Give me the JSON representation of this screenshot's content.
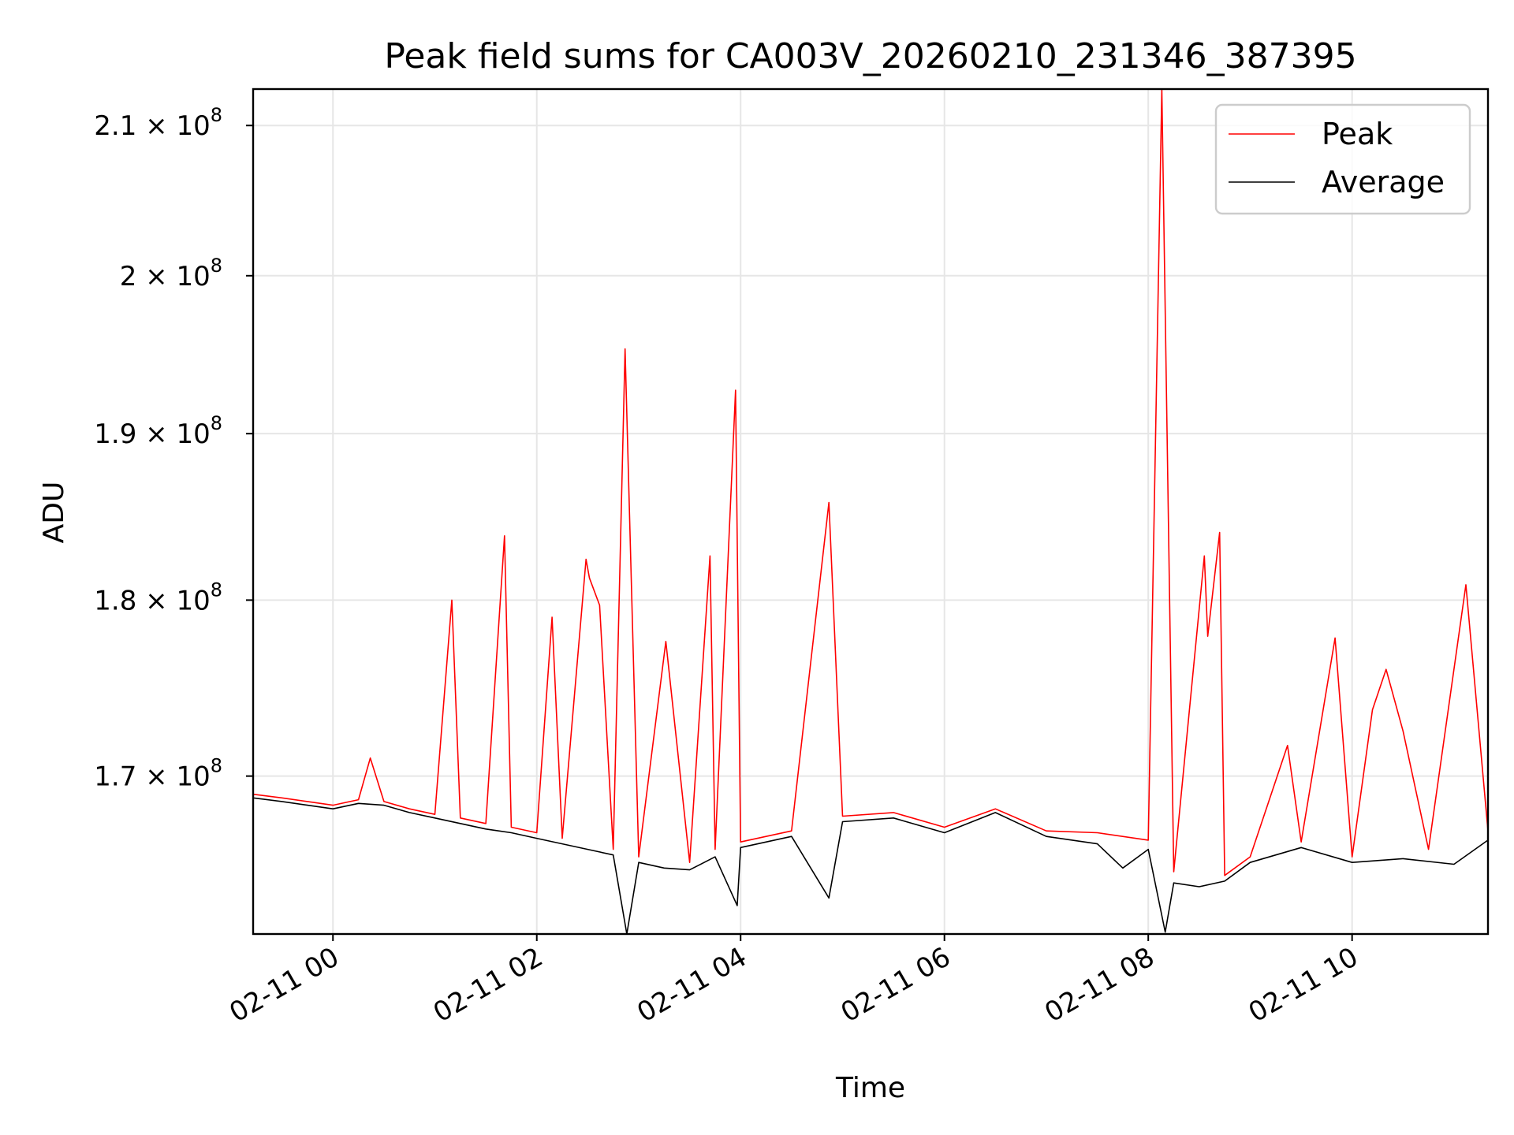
{
  "chart_data": {
    "type": "line",
    "title": "Peak field sums for CA003V_20260210_231346_387395",
    "xlabel": "Time",
    "ylabel": "ADU",
    "x_range": [
      "2026-02-10 23:13",
      "2026-02-11 11:20"
    ],
    "y_range": [
      161500000,
      212500000
    ],
    "y_scale": "log",
    "x_ticks": [
      {
        "t": "2026-02-11 00:00",
        "label": "02-11 00"
      },
      {
        "t": "2026-02-11 02:00",
        "label": "02-11 02"
      },
      {
        "t": "2026-02-11 04:00",
        "label": "02-11 04"
      },
      {
        "t": "2026-02-11 06:00",
        "label": "02-11 06"
      },
      {
        "t": "2026-02-11 08:00",
        "label": "02-11 08"
      },
      {
        "t": "2026-02-11 10:00",
        "label": "02-11 10"
      }
    ],
    "y_ticks": [
      {
        "value": 170000000,
        "mantissa": "1.7"
      },
      {
        "value": 180000000,
        "mantissa": "1.8"
      },
      {
        "value": 190000000,
        "mantissa": "1.9"
      },
      {
        "value": 200000000,
        "mantissa": "2"
      },
      {
        "value": 210000000,
        "mantissa": "2.1"
      }
    ],
    "y_tick_base": "10",
    "y_tick_exponent": "8",
    "grid": true,
    "legend_position": "top-right",
    "series": [
      {
        "name": "Peak",
        "color": "#ff0000",
        "points": [
          [
            "2026-02-10 23:13",
            169000000
          ],
          [
            "2026-02-10 23:30",
            168800000
          ],
          [
            "2026-02-10 23:45",
            168600000
          ],
          [
            "2026-02-11 00:00",
            168400000
          ],
          [
            "2026-02-11 00:15",
            168700000
          ],
          [
            "2026-02-11 00:22",
            171000000
          ],
          [
            "2026-02-11 00:30",
            168600000
          ],
          [
            "2026-02-11 00:45",
            168200000
          ],
          [
            "2026-02-11 01:00",
            167900000
          ],
          [
            "2026-02-11 01:10",
            180000000
          ],
          [
            "2026-02-11 01:15",
            167700000
          ],
          [
            "2026-02-11 01:30",
            167400000
          ],
          [
            "2026-02-11 01:41",
            183800000
          ],
          [
            "2026-02-11 01:45",
            167200000
          ],
          [
            "2026-02-11 02:00",
            166900000
          ],
          [
            "2026-02-11 02:09",
            179000000
          ],
          [
            "2026-02-11 02:15",
            166600000
          ],
          [
            "2026-02-11 02:29",
            182400000
          ],
          [
            "2026-02-11 02:31",
            181300000
          ],
          [
            "2026-02-11 02:37",
            179700000
          ],
          [
            "2026-02-11 02:45",
            166000000
          ],
          [
            "2026-02-11 02:52",
            195300000
          ],
          [
            "2026-02-11 03:00",
            165600000
          ],
          [
            "2026-02-11 03:16",
            177600000
          ],
          [
            "2026-02-11 03:30",
            165300000
          ],
          [
            "2026-02-11 03:42",
            182600000
          ],
          [
            "2026-02-11 03:45",
            166000000
          ],
          [
            "2026-02-11 03:57",
            192700000
          ],
          [
            "2026-02-11 04:00",
            166400000
          ],
          [
            "2026-02-11 04:30",
            167000000
          ],
          [
            "2026-02-11 04:52",
            185800000
          ],
          [
            "2026-02-11 05:00",
            167800000
          ],
          [
            "2026-02-11 05:30",
            168000000
          ],
          [
            "2026-02-11 06:00",
            167200000
          ],
          [
            "2026-02-11 06:30",
            168200000
          ],
          [
            "2026-02-11 07:00",
            167000000
          ],
          [
            "2026-02-11 07:30",
            166900000
          ],
          [
            "2026-02-11 08:00",
            166500000
          ],
          [
            "2026-02-11 08:08",
            212500000
          ],
          [
            "2026-02-11 08:15",
            164800000
          ],
          [
            "2026-02-11 08:33",
            182600000
          ],
          [
            "2026-02-11 08:35",
            177900000
          ],
          [
            "2026-02-11 08:42",
            184000000
          ],
          [
            "2026-02-11 08:45",
            164600000
          ],
          [
            "2026-02-11 09:00",
            165600000
          ],
          [
            "2026-02-11 09:22",
            171700000
          ],
          [
            "2026-02-11 09:30",
            166400000
          ],
          [
            "2026-02-11 09:50",
            177800000
          ],
          [
            "2026-02-11 10:00",
            165600000
          ],
          [
            "2026-02-11 10:12",
            173700000
          ],
          [
            "2026-02-11 10:20",
            176000000
          ],
          [
            "2026-02-11 10:30",
            172500000
          ],
          [
            "2026-02-11 10:45",
            166000000
          ],
          [
            "2026-02-11 11:07",
            180900000
          ],
          [
            "2026-02-11 11:20",
            167000000
          ]
        ]
      },
      {
        "name": "Average",
        "color": "#000000",
        "points": [
          [
            "2026-02-10 23:13",
            168800000
          ],
          [
            "2026-02-10 23:30",
            168600000
          ],
          [
            "2026-02-10 23:45",
            168400000
          ],
          [
            "2026-02-11 00:00",
            168200000
          ],
          [
            "2026-02-11 00:15",
            168500000
          ],
          [
            "2026-02-11 00:30",
            168400000
          ],
          [
            "2026-02-11 00:45",
            168000000
          ],
          [
            "2026-02-11 01:00",
            167700000
          ],
          [
            "2026-02-11 01:15",
            167400000
          ],
          [
            "2026-02-11 01:30",
            167100000
          ],
          [
            "2026-02-11 01:45",
            166900000
          ],
          [
            "2026-02-11 02:00",
            166600000
          ],
          [
            "2026-02-11 02:15",
            166300000
          ],
          [
            "2026-02-11 02:30",
            166000000
          ],
          [
            "2026-02-11 02:45",
            165700000
          ],
          [
            "2026-02-11 02:53",
            161500000
          ],
          [
            "2026-02-11 03:00",
            165300000
          ],
          [
            "2026-02-11 03:15",
            165000000
          ],
          [
            "2026-02-11 03:30",
            164900000
          ],
          [
            "2026-02-11 03:45",
            165600000
          ],
          [
            "2026-02-11 03:58",
            163000000
          ],
          [
            "2026-02-11 04:00",
            166100000
          ],
          [
            "2026-02-11 04:30",
            166700000
          ],
          [
            "2026-02-11 04:52",
            163400000
          ],
          [
            "2026-02-11 05:00",
            167500000
          ],
          [
            "2026-02-11 05:30",
            167700000
          ],
          [
            "2026-02-11 06:00",
            166900000
          ],
          [
            "2026-02-11 06:30",
            168000000
          ],
          [
            "2026-02-11 07:00",
            166700000
          ],
          [
            "2026-02-11 07:30",
            166300000
          ],
          [
            "2026-02-11 07:45",
            165000000
          ],
          [
            "2026-02-11 08:00",
            166000000
          ],
          [
            "2026-02-11 08:10",
            161600000
          ],
          [
            "2026-02-11 08:15",
            164200000
          ],
          [
            "2026-02-11 08:30",
            164000000
          ],
          [
            "2026-02-11 08:45",
            164300000
          ],
          [
            "2026-02-11 09:00",
            165300000
          ],
          [
            "2026-02-11 09:30",
            166100000
          ],
          [
            "2026-02-11 10:00",
            165300000
          ],
          [
            "2026-02-11 10:30",
            165500000
          ],
          [
            "2026-02-11 11:00",
            165200000
          ],
          [
            "2026-02-11 11:20",
            166500000
          ]
        ]
      }
    ]
  }
}
